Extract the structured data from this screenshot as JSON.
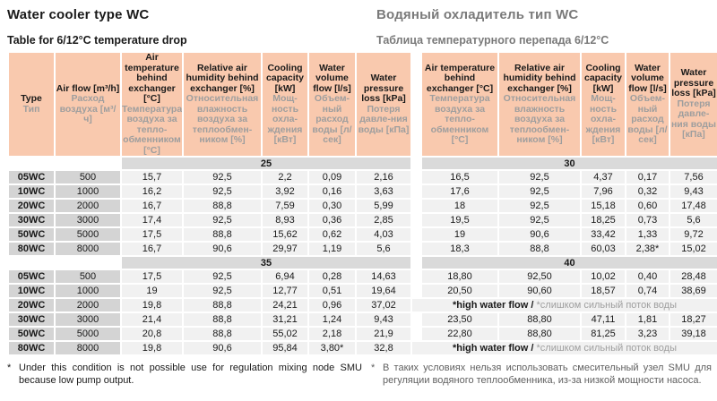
{
  "page": {
    "title_en": "Water cooler type WC",
    "title_ru": "Водяный охладитель тип WC",
    "subtitle_en": "Table for 6/12°C temperature drop",
    "subtitle_ru": "Таблица температурного перепада 6/12°C"
  },
  "colors": {
    "header_bg": "#f9c9ae",
    "row_label_bg": "#d4d4d4",
    "band_bg": "#dadada",
    "value_bg": "#f1f1f1",
    "russian_text": "#9e9e9e",
    "russian_title": "#7a7a7a",
    "russian_footnote": "#606060",
    "text": "#1a1a1a"
  },
  "table": {
    "columns": [
      {
        "en": "Type",
        "ru": "Тип"
      },
      {
        "en": "Air flow [m³/h]",
        "ru": "Расход воздуха [м³/ч]"
      },
      {
        "en": "Air temperature behind exchanger [°C]",
        "ru": "Температура воздуха за тепло-обменником [°C]"
      },
      {
        "en": "Relative air humidity behind exchanger [%]",
        "ru": "Относительная влажность воздуха за теплообмен-ником [%]"
      },
      {
        "en": "Cooling capacity [kW]",
        "ru": "Мощ-ность охла-ждения [кВт]"
      },
      {
        "en": "Water volume flow [l/s]",
        "ru": "Объем-ный расход воды [л/сек]"
      },
      {
        "en": "Water pressure loss [kPa]",
        "ru": "Потеря давле-ния воды [кПа]"
      },
      {
        "en": "Air temperature behind exchanger [°C]",
        "ru": "Температура воздуха за тепло-обменником [°C]"
      },
      {
        "en": "Relative air humidity behind exchanger [%]",
        "ru": "Относительная влажность воздуха за теплообмен-ником [%]"
      },
      {
        "en": "Cooling capacity [kW]",
        "ru": "Мощ-ность охла-ждения [кВт]"
      },
      {
        "en": "Water volume flow [l/s]",
        "ru": "Объем-ный расход воды [л/сек]"
      },
      {
        "en": "Water pressure loss [kPa]",
        "ru": "Потеря давле-ния воды [кПа]"
      }
    ],
    "blocks": [
      {
        "left_label": "25",
        "right_label": "30",
        "rows": [
          {
            "type": "05WC",
            "flow": "500",
            "left": [
              "15,7",
              "92,5",
              "2,2",
              "0,09",
              "2,16"
            ],
            "right": [
              "16,5",
              "92,5",
              "4,37",
              "0,17",
              "7,56"
            ]
          },
          {
            "type": "10WC",
            "flow": "1000",
            "left": [
              "16,2",
              "92,5",
              "3,92",
              "0,16",
              "3,63"
            ],
            "right": [
              "17,6",
              "92,5",
              "7,96",
              "0,32",
              "9,43"
            ]
          },
          {
            "type": "20WC",
            "flow": "2000",
            "left": [
              "16,7",
              "88,8",
              "7,59",
              "0,30",
              "5,99"
            ],
            "right": [
              "18",
              "92,5",
              "15,18",
              "0,60",
              "17,48"
            ]
          },
          {
            "type": "30WC",
            "flow": "3000",
            "left": [
              "17,4",
              "92,5",
              "8,93",
              "0,36",
              "2,85"
            ],
            "right": [
              "19,5",
              "92,5",
              "18,25",
              "0,73",
              "5,6"
            ]
          },
          {
            "type": "50WC",
            "flow": "5000",
            "left": [
              "17,5",
              "88,8",
              "15,62",
              "0,62",
              "4,03"
            ],
            "right": [
              "19",
              "90,6",
              "33,42",
              "1,33",
              "9,72"
            ]
          },
          {
            "type": "80WC",
            "flow": "8000",
            "left": [
              "16,7",
              "90,6",
              "29,97",
              "1,19",
              "5,6"
            ],
            "right": [
              "18,3",
              "88,8",
              "60,03",
              "2,38*",
              "15,02"
            ]
          }
        ]
      },
      {
        "left_label": "35",
        "right_label": "40",
        "rows": [
          {
            "type": "05WC",
            "flow": "500",
            "left": [
              "17,5",
              "92,5",
              "6,94",
              "0,28",
              "14,63"
            ],
            "right": [
              "18,80",
              "92,50",
              "10,02",
              "0,40",
              "28,48"
            ]
          },
          {
            "type": "10WC",
            "flow": "1000",
            "left": [
              "19",
              "92,5",
              "12,77",
              "0,51",
              "19,64"
            ],
            "right": [
              "20,50",
              "90,60",
              "18,57",
              "0,74",
              "38,69"
            ]
          },
          {
            "type": "20WC",
            "flow": "2000",
            "left": [
              "19,8",
              "88,8",
              "24,21",
              "0,96",
              "37,02"
            ],
            "note_en": "*high water flow /",
            "note_ru": "*слишком сильный поток воды"
          },
          {
            "type": "30WC",
            "flow": "3000",
            "left": [
              "21,4",
              "88,8",
              "31,21",
              "1,24",
              "9,43"
            ],
            "right": [
              "23,50",
              "88,80",
              "47,11",
              "1,81",
              "18,27"
            ]
          },
          {
            "type": "50WC",
            "flow": "5000",
            "left": [
              "20,8",
              "88,8",
              "55,02",
              "2,18",
              "21,9"
            ],
            "right": [
              "22,80",
              "88,80",
              "81,25",
              "3,23",
              "39,18"
            ]
          },
          {
            "type": "80WC",
            "flow": "8000",
            "left": [
              "19,8",
              "90,6",
              "95,84",
              "3,80*",
              "32,8"
            ],
            "note_en": "*high water flow /",
            "note_ru": "*слишком сильный поток воды"
          }
        ]
      }
    ]
  },
  "footnotes": {
    "marker": "*",
    "en": "Under this condition is not possible use for regulation mixing node SMU because low pump output.",
    "ru": "В таких условиях нельзя использовать смесительный узел SMU для регуляции водяного теплообменника, из-за низкой мощности насоса."
  }
}
